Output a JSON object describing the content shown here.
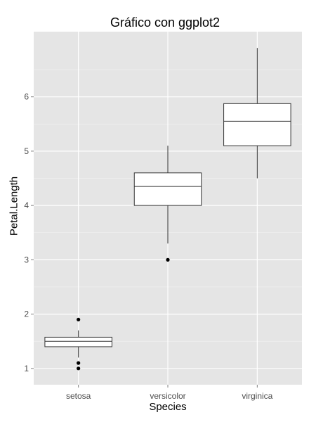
{
  "chart_data": {
    "type": "boxplot",
    "title": "Gráfico con ggplot2",
    "xlabel": "Species",
    "ylabel": "Petal.Length",
    "categories": [
      "setosa",
      "versicolor",
      "virginica"
    ],
    "boxes": [
      {
        "category": "setosa",
        "whisker_low": 1.2,
        "q1": 1.4,
        "median": 1.5,
        "q3": 1.575,
        "whisker_high": 1.7,
        "outliers": [
          1.0,
          1.1,
          1.9
        ]
      },
      {
        "category": "versicolor",
        "whisker_low": 3.3,
        "q1": 4.0,
        "median": 4.35,
        "q3": 4.6,
        "whisker_high": 5.1,
        "outliers": [
          3.0
        ]
      },
      {
        "category": "virginica",
        "whisker_low": 4.5,
        "q1": 5.1,
        "median": 5.55,
        "q3": 5.875,
        "whisker_high": 6.9,
        "outliers": []
      }
    ],
    "y_ticks": [
      1,
      2,
      3,
      4,
      5,
      6
    ],
    "ylim": [
      0.7,
      7.2
    ],
    "grid": true,
    "panel_background": "#e5e5e5",
    "grid_color": "#ffffff"
  }
}
